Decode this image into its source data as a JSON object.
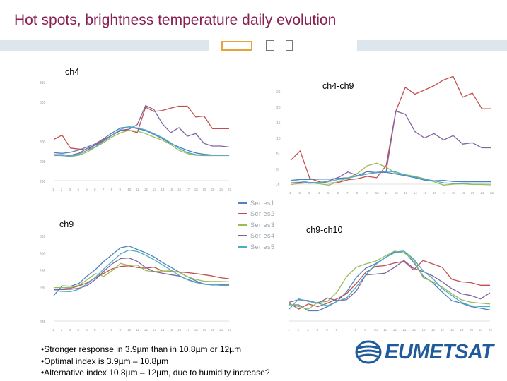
{
  "header": {
    "title": "Hot spots, brightness temperature daily evolution"
  },
  "colors": {
    "title": "#8a1f54",
    "decoration": "#dde6ec",
    "logo": "#1f5a9d"
  },
  "header_icons": [
    "box-outline-icon",
    "square-outline-icon",
    "square-outline-icon"
  ],
  "legend": {
    "series": [
      {
        "name": "Ser es1",
        "color": "#4f81bd"
      },
      {
        "name": "Ser es2",
        "color": "#c0504d"
      },
      {
        "name": "Ser es3",
        "color": "#9bbb59"
      },
      {
        "name": "Ser es4",
        "color": "#8064a2"
      },
      {
        "name": "Ser es5",
        "color": "#4bacc6"
      }
    ]
  },
  "bullets": [
    "•Stronger response in 3.9µm than in 10.8µm or 12µm",
    "•Optimal index is 3.9µm – 10.8µm",
    "•Alternative index 10.8µm – 12µm, due to humidity increase?"
  ],
  "logo": {
    "text": "EUMETSAT"
  },
  "chart_data": [
    {
      "type": "line",
      "title": "ch4",
      "x": [
        1,
        2,
        3,
        4,
        5,
        6,
        7,
        8,
        9,
        10,
        11,
        12,
        13,
        14,
        15,
        16,
        17,
        18,
        19,
        20,
        21,
        22
      ],
      "ylim": [
        285,
        315
      ],
      "yticks": [
        "310",
        "305",
        "",
        "300",
        "295",
        "290"
      ],
      "series": [
        {
          "values": [
            293.5,
            293.3,
            293.6,
            294.3,
            295.2,
            296.2,
            297.8,
            299.5,
            301.0,
            301.3,
            300.8,
            300.2,
            299.0,
            297.8,
            296.3,
            295.2,
            294.2,
            293.4,
            293.0,
            292.8,
            292.8,
            292.8
          ]
        },
        {
          "values": [
            297.5,
            298.8,
            294.9,
            294.6,
            294.3,
            295.9,
            297.5,
            298.8,
            300.2,
            300.3,
            299.6,
            307.3,
            306.0,
            306.3,
            307.0,
            307.6,
            307.6,
            304.3,
            304.6,
            300.8,
            300.8,
            300.8
          ]
        },
        {
          "values": [
            292.6,
            292.6,
            292.3,
            292.7,
            293.7,
            295.2,
            296.6,
            298.3,
            299.5,
            300.3,
            300.0,
            299.3,
            298.2,
            297.3,
            296.0,
            294.2,
            293.2,
            292.7,
            292.6,
            292.6,
            292.6,
            292.6
          ]
        },
        {
          "values": [
            292.9,
            292.9,
            292.7,
            293.3,
            294.8,
            295.8,
            297.1,
            298.9,
            300.3,
            300.6,
            302.0,
            307.8,
            306.6,
            302.3,
            299.6,
            301.1,
            298.5,
            299.3,
            296.3,
            295.5,
            295.5,
            295.2
          ]
        },
        {
          "values": [
            292.7,
            292.6,
            292.4,
            293.0,
            294.2,
            295.3,
            297.0,
            298.8,
            300.6,
            301.4,
            301.0,
            300.4,
            299.3,
            298.1,
            296.5,
            294.8,
            293.5,
            292.9,
            292.7,
            292.7,
            292.7,
            292.7
          ]
        }
      ]
    },
    {
      "type": "line",
      "title": "ch4-ch9",
      "x": [
        1,
        2,
        3,
        4,
        5,
        6,
        7,
        8,
        9,
        10,
        11,
        12,
        13,
        14,
        15,
        16,
        17,
        18,
        19,
        20,
        21,
        22
      ],
      "ylim": [
        -2,
        30
      ],
      "yticks": [
        "",
        "25",
        "20",
        "15",
        "10",
        "5",
        "0",
        "-5"
      ],
      "series": [
        {
          "values": [
            -0.9,
            -0.6,
            -0.6,
            -0.5,
            -0.5,
            -0.3,
            -0.1,
            0.4,
            1.0,
            1.4,
            1.5,
            1.0,
            0.5,
            -0.1,
            -0.8,
            -1.0,
            -0.9,
            -1.2,
            -1.3,
            -1.3,
            -1.3,
            -1.3
          ]
        },
        {
          "values": [
            5.0,
            7.8,
            -0.3,
            -1.3,
            -1.7,
            -1.5,
            -0.7,
            -0.4,
            0.3,
            -0.1,
            3.5,
            19.5,
            26.5,
            24.5,
            25.7,
            27.0,
            28.7,
            29.7,
            23.6,
            24.8,
            20.2,
            20.2
          ]
        },
        {
          "values": [
            -2.1,
            -1.8,
            -1.5,
            -1.9,
            -2.3,
            -1.2,
            -0.2,
            1.2,
            3.4,
            4.2,
            3.0,
            1.2,
            0.8,
            0.3,
            -0.4,
            -1.3,
            -2.3,
            -2.0,
            -1.9,
            -2.1,
            -2.1,
            -2.2
          ]
        },
        {
          "values": [
            -1.6,
            -1.5,
            -1.7,
            -1.6,
            -1.0,
            0.0,
            1.6,
            0.5,
            1.7,
            1.4,
            1.8,
            19.5,
            18.6,
            13.5,
            11.6,
            12.9,
            11.0,
            12.3,
            9.8,
            10.2,
            8.7,
            8.7
          ]
        },
        {
          "values": [
            -1.0,
            -1.1,
            -1.5,
            -1.5,
            -1.2,
            -0.6,
            -0.3,
            0.5,
            1.0,
            1.5,
            1.8,
            1.6,
            0.7,
            0.1,
            -0.5,
            -1.0,
            -1.6,
            -1.8,
            -1.8,
            -1.7,
            -1.7,
            -1.7
          ]
        }
      ]
    },
    {
      "type": "line",
      "title": "ch9",
      "x": [
        1,
        2,
        3,
        4,
        5,
        6,
        7,
        8,
        9,
        10,
        11,
        12,
        13,
        14,
        15,
        16,
        17,
        18,
        19,
        20,
        21,
        22
      ],
      "ylim": [
        280,
        310
      ],
      "yticks": [
        "",
        "305",
        "300",
        "295",
        "290",
        "",
        "285"
      ],
      "series": [
        {
          "values": [
            287.5,
            290.3,
            290.2,
            291.0,
            293.2,
            295.1,
            297.5,
            299.5,
            301.5,
            302.0,
            301.0,
            300.0,
            298.8,
            297.2,
            295.8,
            294.4,
            293.0,
            291.8,
            290.8,
            290.6,
            290.6,
            290.5
          ]
        },
        {
          "values": [
            289.3,
            289.4,
            289.6,
            290.3,
            291.2,
            292.7,
            294.0,
            295.3,
            296.0,
            296.2,
            295.7,
            295.5,
            295.8,
            294.7,
            294.6,
            294.4,
            294.2,
            293.9,
            293.6,
            293.2,
            292.7,
            292.4
          ]
        },
        {
          "values": [
            289.8,
            289.8,
            289.8,
            290.5,
            292.1,
            293.9,
            293.1,
            294.8,
            296.9,
            296.3,
            296.4,
            294.8,
            294.5,
            294.7,
            294.7,
            294.3,
            293.0,
            292.2,
            291.7,
            291.6,
            291.6,
            291.5
          ]
        },
        {
          "values": [
            289.2,
            289.2,
            289.3,
            289.6,
            290.4,
            292.2,
            294.6,
            296.8,
            298.3,
            298.5,
            297.5,
            295.7,
            294.5,
            294.0,
            293.6,
            293.2,
            292.2,
            291.4,
            290.9,
            290.6,
            290.6,
            290.6
          ]
        },
        {
          "values": [
            288.9,
            288.7,
            288.6,
            289.3,
            290.9,
            292.8,
            295.3,
            297.5,
            299.7,
            300.8,
            300.4,
            299.3,
            298.0,
            296.5,
            295.0,
            293.4,
            292.1,
            291.3,
            290.8,
            290.7,
            290.5,
            290.4
          ]
        }
      ]
    },
    {
      "type": "line",
      "title": "ch9-ch10",
      "x": [
        1,
        2,
        3,
        4,
        5,
        6,
        7,
        8,
        9,
        10,
        11,
        12,
        13,
        14,
        15,
        16,
        17,
        18,
        19,
        20,
        21,
        22
      ],
      "ylim": [
        -2,
        10
      ],
      "yticks": [
        "",
        "",
        "",
        "",
        "",
        "",
        "",
        ""
      ],
      "series": [
        {
          "values": [
            -0.1,
            -0.1,
            -0.8,
            -0.8,
            -0.3,
            0.3,
            1.4,
            3.1,
            4.2,
            4.7,
            5.4,
            6.1,
            6.2,
            4.9,
            3.3,
            2.5,
            1.4,
            0.4,
            0.1,
            -0.3,
            -0.5,
            -0.7
          ]
        },
        {
          "values": [
            0.1,
            -0.6,
            0.0,
            -0.3,
            0.1,
            0.6,
            1.2,
            2.4,
            3.7,
            4.4,
            4.5,
            4.8,
            5.0,
            4.0,
            5.1,
            4.7,
            4.3,
            2.9,
            2.6,
            2.5,
            2.2,
            2.2
          ]
        },
        {
          "values": [
            0.0,
            -0.3,
            -0.6,
            0.2,
            0.3,
            1.4,
            3.2,
            4.3,
            4.7,
            5.0,
            5.6,
            6.2,
            6.0,
            5.2,
            3.1,
            2.6,
            2.0,
            1.2,
            0.5,
            0.2,
            0.1,
            0.0
          ]
        },
        {
          "values": [
            0.2,
            0.5,
            0.4,
            0.1,
            0.7,
            0.4,
            0.5,
            1.5,
            3.4,
            3.5,
            3.6,
            4.3,
            5.1,
            4.2,
            3.8,
            3.3,
            2.6,
            1.8,
            1.2,
            1.0,
            0.6,
            1.3
          ]
        },
        {
          "values": [
            -0.6,
            0.6,
            0.3,
            0.1,
            -0.2,
            0.3,
            0.7,
            2.0,
            3.4,
            4.6,
            5.4,
            6.0,
            6.2,
            5.3,
            3.9,
            3.0,
            1.8,
            1.0,
            0.2,
            -0.2,
            -0.3,
            -0.3
          ]
        }
      ]
    }
  ]
}
